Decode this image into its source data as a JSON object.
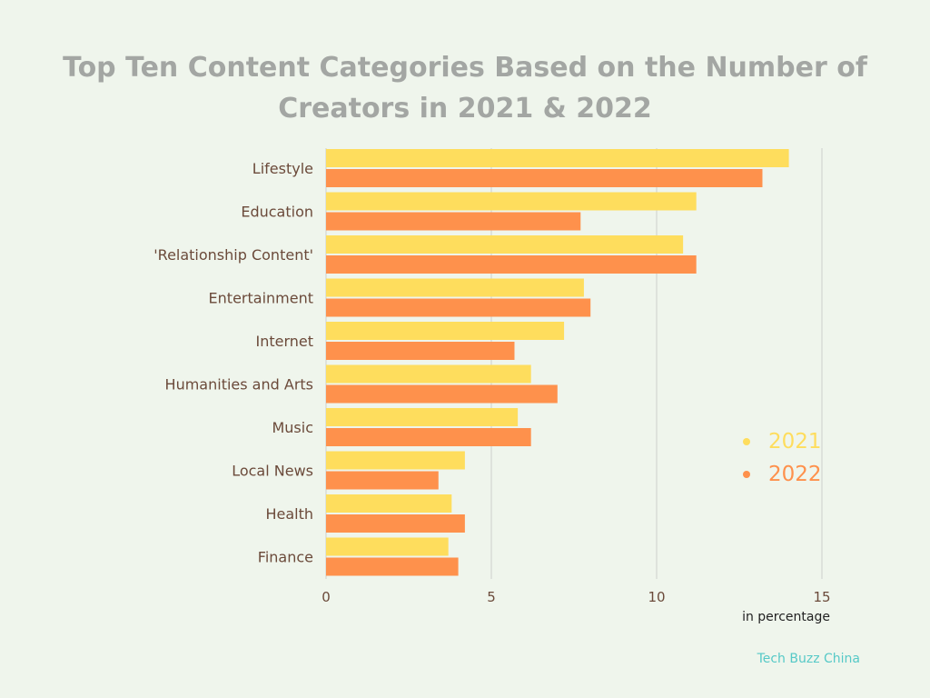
{
  "chart_data": {
    "type": "bar",
    "orientation": "horizontal",
    "title": "Top Ten Content Categories Based on the Number of Creators in 2021 & 2022",
    "xlabel": "in percentage",
    "xlim": [
      0,
      15
    ],
    "xticks": [
      0,
      5,
      10,
      15
    ],
    "grid": true,
    "legend_position": "right",
    "categories": [
      "Lifestyle",
      "Education",
      "'Relationship Content'",
      "Entertainment",
      "Internet",
      "Humanities and Arts",
      "Music",
      "Local News",
      "Health",
      "Finance"
    ],
    "series": [
      {
        "name": "2021",
        "color": "#fedd5d",
        "values": [
          14.0,
          11.2,
          10.8,
          7.8,
          7.2,
          6.2,
          5.8,
          4.2,
          3.8,
          3.7
        ]
      },
      {
        "name": "2022",
        "color": "#fe914c",
        "values": [
          13.2,
          7.7,
          11.2,
          8.0,
          5.7,
          7.0,
          6.2,
          3.4,
          4.2,
          4.0
        ]
      }
    ]
  },
  "source": "Tech Buzz China"
}
